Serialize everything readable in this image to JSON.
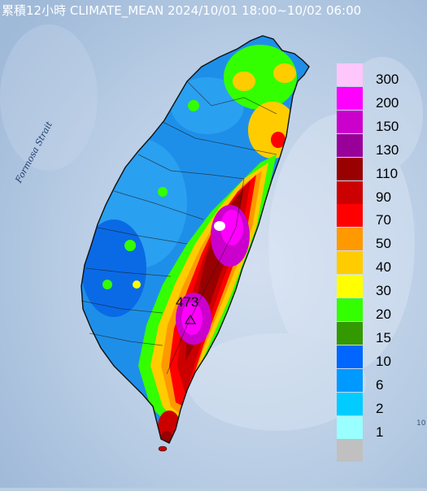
{
  "title": "累積12小時 CLIMATE_MEAN 2024/10/01 18:00~10/02 06:00",
  "map": {
    "sea_label": "Formosa Strait",
    "max_value": "473",
    "max_marker_icon": "triangle-icon",
    "corner_mark": "10"
  },
  "legend": {
    "items": [
      {
        "label": "300",
        "color": "#ffc6fb"
      },
      {
        "label": "200",
        "color": "#ff00ff"
      },
      {
        "label": "150",
        "color": "#cc00cc"
      },
      {
        "label": "130",
        "color": "#990099"
      },
      {
        "label": "110",
        "color": "#990000"
      },
      {
        "label": "90",
        "color": "#cc0000"
      },
      {
        "label": "70",
        "color": "#ff0000"
      },
      {
        "label": "50",
        "color": "#ff9900"
      },
      {
        "label": "40",
        "color": "#ffcc00"
      },
      {
        "label": "30",
        "color": "#ffff00"
      },
      {
        "label": "20",
        "color": "#33ff00"
      },
      {
        "label": "15",
        "color": "#339900"
      },
      {
        "label": "10",
        "color": "#0066ff"
      },
      {
        "label": "6",
        "color": "#0099ff"
      },
      {
        "label": "2",
        "color": "#00ccff"
      },
      {
        "label": "1",
        "color": "#99ffff"
      },
      {
        "label": "",
        "color": "#c0c0c0"
      }
    ]
  }
}
